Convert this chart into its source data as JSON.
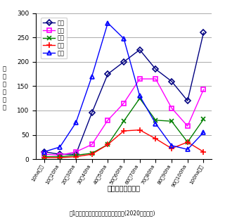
{
  "categories": [
    "10ha未満",
    "10～20ha",
    "20～30ha",
    "30～40ha",
    "40～50ha",
    "50～60ha",
    "60～70ha",
    "70～80ha",
    "80～90ha",
    "90～100ha",
    "100ha以上"
  ],
  "series": {
    "根室": {
      "values": [
        15,
        10,
        10,
        95,
        175,
        200,
        225,
        185,
        160,
        120,
        260
      ],
      "color": "#000080",
      "marker": "D",
      "linestyle": "-"
    },
    "釧路": {
      "values": [
        10,
        8,
        15,
        30,
        80,
        115,
        165,
        165,
        105,
        68,
        143
      ],
      "color": "#ff00ff",
      "marker": "s",
      "linestyle": "-"
    },
    "宗谷": {
      "values": [
        5,
        5,
        8,
        12,
        30,
        78,
        125,
        80,
        78,
        35,
        82
      ],
      "color": "#008000",
      "marker": "x",
      "linestyle": "-"
    },
    "留萌": {
      "values": [
        3,
        3,
        5,
        10,
        30,
        58,
        60,
        42,
        22,
        35,
        15
      ],
      "color": "#ff0000",
      "marker": "+",
      "linestyle": "-"
    },
    "十勝": {
      "values": [
        15,
        25,
        75,
        170,
        280,
        248,
        130,
        73,
        28,
        20,
        55
      ],
      "color": "#0000ff",
      "marker": "^",
      "linestyle": "-"
    }
  },
  "xlabel": "経営耕地面積規模",
  "ylabel": "農家数（戸）",
  "title": "囱1　支庁別にみた面積規模別農家数(2020年予測値)",
  "ylim": [
    0,
    300
  ],
  "yticks": [
    0,
    50,
    100,
    150,
    200,
    250,
    300
  ],
  "legend_order": [
    "根室",
    "釧路",
    "宗谷",
    "留萌",
    "十勝"
  ],
  "bg_color": "#ffffff",
  "grid_color": "#888888",
  "marker_sizes": {
    "D": 4,
    "s": 4,
    "x": 5,
    "+": 6,
    "^": 5
  }
}
